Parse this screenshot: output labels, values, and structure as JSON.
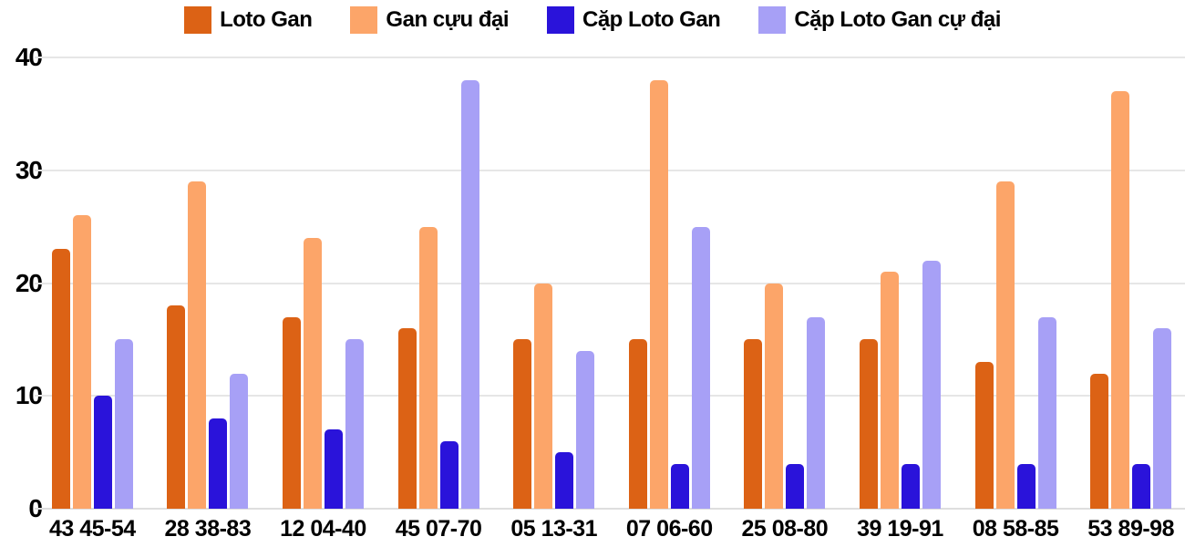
{
  "chart_data": {
    "type": "bar",
    "title": "",
    "xlabel": "",
    "ylabel": "",
    "ylim": [
      0,
      40
    ],
    "yticks": [
      0,
      10,
      20,
      30,
      40
    ],
    "grid": true,
    "legend_position": "top",
    "background_color": "#ffffff",
    "gridline_color": "#e6e6e6",
    "text_color": "#000000",
    "categories": [
      "43 45-54",
      "28 38-83",
      "12 04-40",
      "45 07-70",
      "05 13-31",
      "07 06-60",
      "25 08-80",
      "39 19-91",
      "08 58-85",
      "53 89-98"
    ],
    "series": [
      {
        "name": "Loto Gan",
        "color": "#dc6215",
        "values": [
          23,
          18,
          17,
          16,
          15,
          15,
          15,
          15,
          13,
          12
        ]
      },
      {
        "name": "Gan cựu đại",
        "color": "#fca569",
        "values": [
          26,
          29,
          24,
          25,
          20,
          38,
          20,
          21,
          29,
          37
        ]
      },
      {
        "name": "Cặp Loto Gan",
        "color": "#2a13da",
        "values": [
          10,
          8,
          7,
          6,
          5,
          4,
          4,
          4,
          4,
          4
        ]
      },
      {
        "name": "Cặp Loto Gan cự đại",
        "color": "#a7a0f6",
        "values": [
          15,
          12,
          15,
          38,
          14,
          25,
          17,
          22,
          17,
          16
        ]
      }
    ]
  }
}
